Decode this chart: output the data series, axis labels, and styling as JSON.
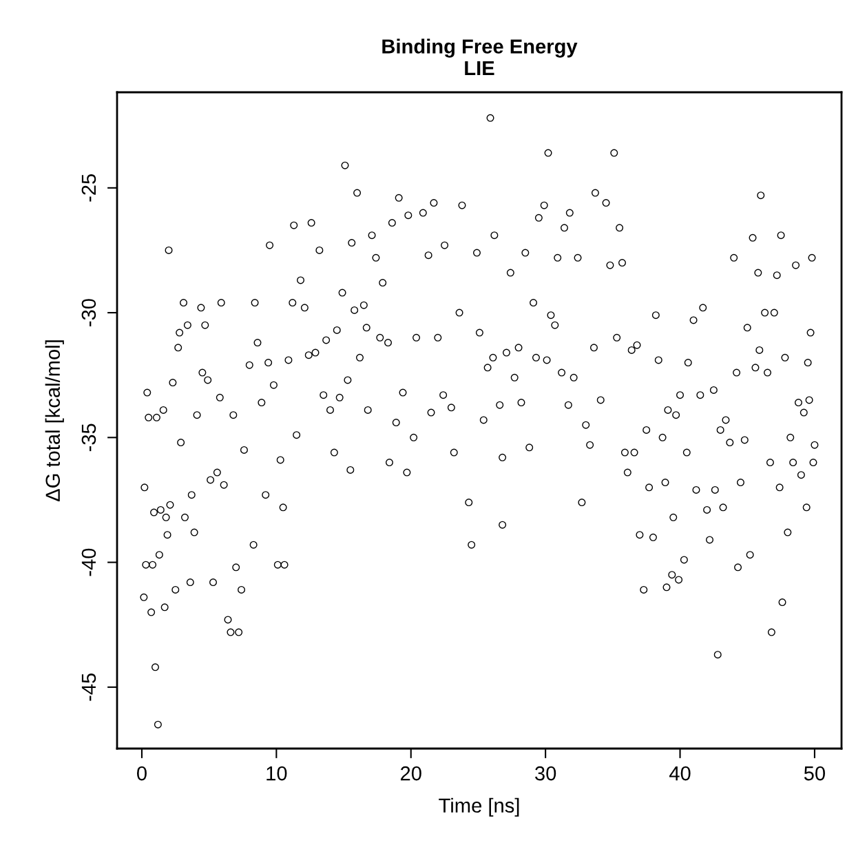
{
  "chart_data": {
    "type": "scatter",
    "title": "Binding Free Energy\nLIE",
    "xlabel": "Time [ns]",
    "ylabel": "ΔG total [kcal/mol]",
    "xlim": [
      -1.84,
      52.0
    ],
    "ylim": [
      -47.46,
      -21.17
    ],
    "xticks": [
      0,
      10,
      20,
      30,
      40,
      50
    ],
    "yticks": [
      -45,
      -40,
      -35,
      -30,
      -25
    ],
    "grid": false,
    "legend": false,
    "marker": "circle",
    "series": [
      {
        "color": "#000000",
        "x": [
          0.15,
          0.2,
          0.3,
          0.4,
          0.5,
          0.7,
          0.8,
          0.9,
          1.0,
          1.1,
          1.2,
          1.3,
          1.4,
          1.6,
          1.7,
          1.8,
          1.9,
          2.0,
          2.1,
          2.3,
          2.5,
          2.7,
          2.8,
          2.9,
          3.1,
          3.2,
          3.4,
          3.6,
          3.7,
          3.9,
          4.1,
          4.4,
          4.5,
          4.7,
          4.9,
          5.1,
          5.3,
          5.6,
          5.8,
          5.9,
          6.1,
          6.4,
          6.6,
          6.8,
          7.0,
          7.2,
          7.4,
          7.6,
          8.0,
          8.3,
          8.4,
          8.6,
          8.9,
          9.2,
          9.4,
          9.5,
          9.8,
          10.1,
          10.3,
          10.5,
          10.6,
          10.9,
          11.2,
          11.3,
          11.5,
          11.8,
          12.1,
          12.4,
          12.6,
          12.9,
          13.2,
          13.5,
          13.7,
          14.0,
          14.3,
          14.5,
          14.7,
          14.9,
          15.1,
          15.3,
          15.5,
          15.6,
          15.8,
          16.0,
          16.2,
          16.5,
          16.7,
          16.8,
          17.1,
          17.4,
          17.7,
          17.9,
          18.3,
          18.4,
          18.6,
          18.9,
          19.1,
          19.4,
          19.7,
          19.8,
          20.2,
          20.4,
          20.9,
          21.3,
          21.5,
          21.7,
          22.0,
          22.4,
          22.5,
          23.0,
          23.2,
          23.6,
          23.8,
          24.3,
          24.5,
          24.9,
          25.1,
          25.4,
          25.7,
          25.9,
          26.1,
          26.2,
          26.6,
          26.8,
          26.8,
          27.1,
          27.4,
          27.7,
          28.0,
          28.2,
          28.5,
          28.8,
          29.1,
          29.3,
          29.5,
          29.9,
          30.1,
          30.2,
          30.4,
          30.7,
          30.9,
          31.2,
          31.4,
          31.7,
          31.8,
          32.1,
          32.4,
          32.7,
          33.0,
          33.3,
          33.6,
          33.7,
          34.1,
          34.5,
          34.8,
          35.1,
          35.3,
          35.5,
          35.7,
          35.9,
          36.1,
          36.4,
          36.6,
          36.8,
          37.0,
          37.3,
          37.5,
          37.7,
          38.0,
          38.2,
          38.4,
          38.7,
          38.9,
          39.0,
          39.1,
          39.4,
          39.5,
          39.7,
          39.9,
          40.0,
          40.3,
          40.5,
          40.6,
          41.0,
          41.2,
          41.5,
          41.7,
          42.0,
          42.2,
          42.5,
          42.6,
          42.8,
          43.0,
          43.2,
          43.4,
          43.7,
          44.0,
          44.2,
          44.3,
          44.5,
          44.8,
          45.0,
          45.2,
          45.4,
          45.6,
          45.8,
          45.9,
          46.0,
          46.3,
          46.5,
          46.7,
          46.8,
          47.0,
          47.2,
          47.4,
          47.5,
          47.6,
          47.8,
          48.0,
          48.2,
          48.4,
          48.6,
          48.8,
          49.0,
          49.2,
          49.4,
          49.5,
          49.6,
          49.7,
          49.8,
          49.9,
          50.0
        ],
        "values": [
          -41.4,
          -37.0,
          -40.1,
          -33.2,
          -34.2,
          -42.0,
          -40.1,
          -38.0,
          -44.2,
          -34.2,
          -46.5,
          -39.7,
          -37.9,
          -33.9,
          -41.8,
          -38.2,
          -38.9,
          -27.5,
          -37.7,
          -32.8,
          -41.1,
          -31.4,
          -30.8,
          -35.2,
          -29.6,
          -38.2,
          -30.5,
          -40.8,
          -37.3,
          -38.8,
          -34.1,
          -29.8,
          -32.4,
          -30.5,
          -32.7,
          -36.7,
          -40.8,
          -36.4,
          -33.4,
          -29.6,
          -36.9,
          -42.3,
          -42.8,
          -34.1,
          -40.2,
          -42.8,
          -41.1,
          -35.5,
          -32.1,
          -39.3,
          -29.6,
          -31.2,
          -33.6,
          -37.3,
          -32.0,
          -27.3,
          -32.9,
          -40.1,
          -35.9,
          -37.8,
          -40.1,
          -31.9,
          -29.6,
          -26.5,
          -34.9,
          -28.7,
          -29.8,
          -31.7,
          -26.4,
          -31.6,
          -27.5,
          -33.3,
          -31.1,
          -33.9,
          -35.6,
          -30.7,
          -33.4,
          -29.2,
          -24.1,
          -32.7,
          -36.3,
          -27.2,
          -29.9,
          -25.2,
          -31.8,
          -29.7,
          -30.6,
          -33.9,
          -26.9,
          -27.8,
          -31.0,
          -28.8,
          -31.2,
          -36.0,
          -26.4,
          -34.4,
          -25.4,
          -33.2,
          -36.4,
          -26.1,
          -35.0,
          -31.0,
          -26.0,
          -27.7,
          -34.0,
          -25.6,
          -31.0,
          -33.3,
          -27.3,
          -33.8,
          -35.6,
          -30.0,
          -25.7,
          -37.6,
          -39.3,
          -27.6,
          -30.8,
          -34.3,
          -32.2,
          -22.2,
          -31.8,
          -26.9,
          -33.7,
          -35.8,
          -38.5,
          -31.6,
          -28.4,
          -32.6,
          -31.4,
          -33.6,
          -27.6,
          -35.4,
          -29.6,
          -31.8,
          -26.2,
          -25.7,
          -31.9,
          -23.6,
          -30.1,
          -30.5,
          -27.8,
          -32.4,
          -26.6,
          -33.7,
          -26.0,
          -32.6,
          -27.8,
          -37.6,
          -34.5,
          -35.3,
          -31.4,
          -25.2,
          -33.5,
          -25.6,
          -28.1,
          -23.6,
          -31.0,
          -26.6,
          -28.0,
          -35.6,
          -36.4,
          -31.5,
          -35.6,
          -31.3,
          -38.9,
          -41.1,
          -34.7,
          -37.0,
          -39.0,
          -30.1,
          -31.9,
          -35.0,
          -36.8,
          -41.0,
          -33.9,
          -40.5,
          -38.2,
          -34.1,
          -40.7,
          -33.3,
          -39.9,
          -35.6,
          -32.0,
          -30.3,
          -37.1,
          -33.3,
          -29.8,
          -37.9,
          -39.1,
          -33.1,
          -37.1,
          -43.7,
          -34.7,
          -37.8,
          -34.3,
          -35.2,
          -27.8,
          -32.4,
          -40.2,
          -36.8,
          -35.1,
          -30.6,
          -39.7,
          -27.0,
          -32.2,
          -28.4,
          -31.5,
          -25.3,
          -30.0,
          -32.4,
          -36.0,
          -42.8,
          -30.0,
          -28.5,
          -37.0,
          -26.9,
          -41.6,
          -31.8,
          -38.8,
          -35.0,
          -36.0,
          -28.1,
          -33.6,
          -36.5,
          -34.0,
          -37.8,
          -32.0,
          -33.5,
          -30.8,
          -27.8,
          -36.0,
          -35.3
        ]
      }
    ]
  }
}
